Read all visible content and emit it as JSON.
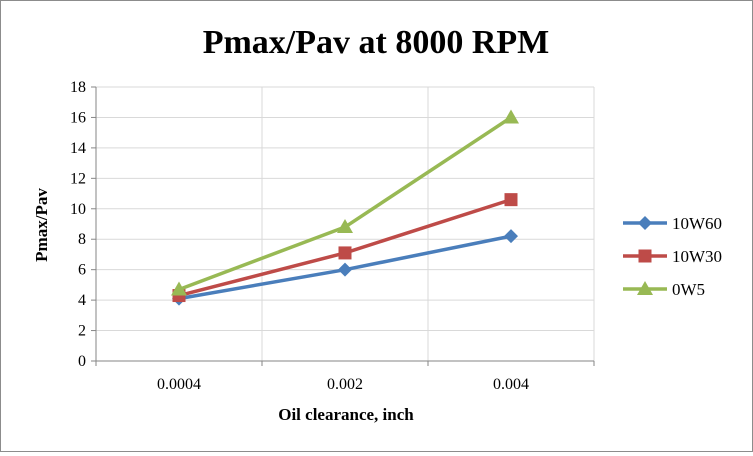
{
  "chart_data": {
    "type": "line",
    "title": "Pmax/Pav at 8000 RPM",
    "xlabel": "Oil clearance, inch",
    "ylabel": "Pmax/Pav",
    "categories": [
      "0.0004",
      "0.002",
      "0.004"
    ],
    "ylim": [
      0,
      18
    ],
    "yticks": [
      "0",
      "2",
      "4",
      "6",
      "8",
      "10",
      "12",
      "14",
      "16",
      "18"
    ],
    "grid": true,
    "legend_position": "right",
    "series": [
      {
        "name": "10W60",
        "values": [
          4.1,
          6.0,
          8.2
        ],
        "color": "#4a7ebb",
        "marker": "diamond"
      },
      {
        "name": "10W30",
        "values": [
          4.3,
          7.1,
          10.6
        ],
        "color": "#be4b48",
        "marker": "square"
      },
      {
        "name": "0W5",
        "values": [
          4.7,
          8.8,
          16.0
        ],
        "color": "#98b954",
        "marker": "triangle"
      }
    ]
  }
}
